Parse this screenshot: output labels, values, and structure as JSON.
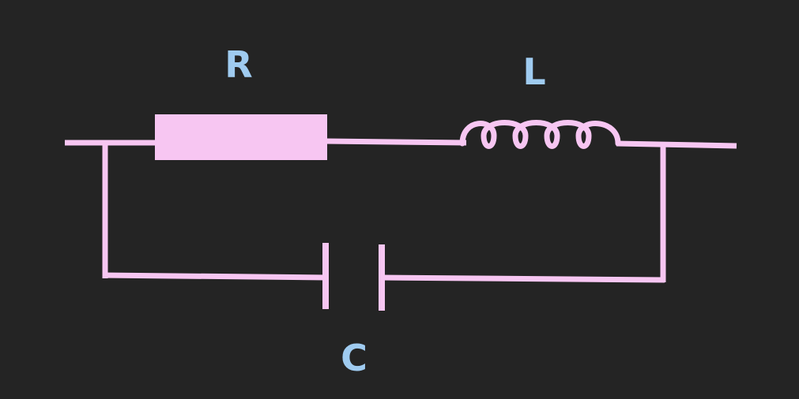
{
  "diagram": {
    "type": "RLC circuit",
    "background": "#242424",
    "wire_color": "#f7c6f2",
    "label_color": "#9fcbf0",
    "components": {
      "resistor": {
        "label": "R"
      },
      "inductor": {
        "label": "L"
      },
      "capacitor": {
        "label": "C"
      }
    }
  }
}
